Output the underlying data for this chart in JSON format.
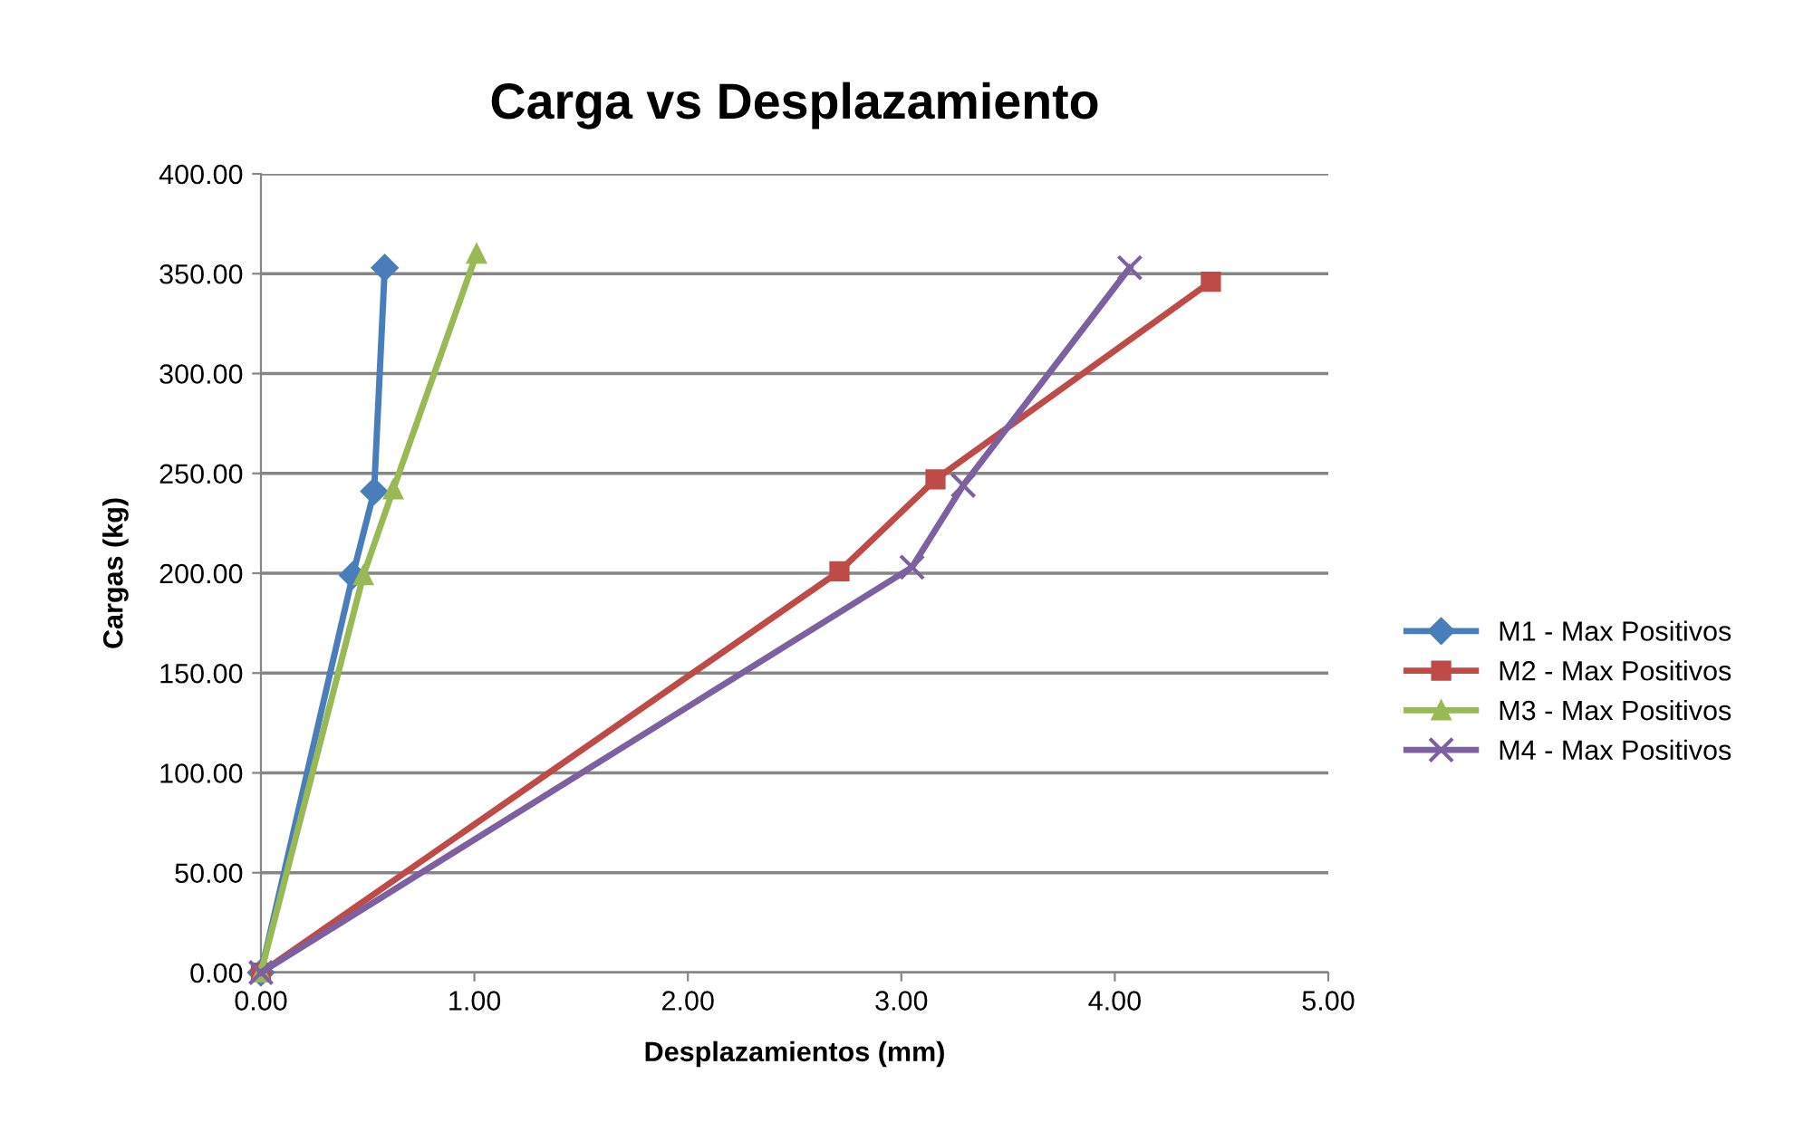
{
  "chart_data": {
    "type": "line",
    "title": "Carga vs Desplazamiento",
    "xlabel": "Desplazamientos (mm)",
    "ylabel": "Cargas (kg)",
    "series": [
      {
        "name": "M1 - Max Positivos",
        "color": "#4a7ebb",
        "marker": "diamond",
        "x": [
          0,
          0.43,
          0.53,
          0.58
        ],
        "values": [
          0,
          199,
          241,
          353
        ]
      },
      {
        "name": "M2 - Max Positivos",
        "color": "#be4b48",
        "marker": "square",
        "x": [
          0,
          2.71,
          3.16,
          4.45
        ],
        "values": [
          0,
          201,
          247,
          346
        ]
      },
      {
        "name": "M3 - Max Positivos",
        "color": "#98b954",
        "marker": "triangle",
        "x": [
          0,
          0.48,
          0.62,
          1.01
        ],
        "values": [
          0,
          199,
          242,
          360
        ]
      },
      {
        "name": "M4 - Max Positivos",
        "color": "#7d60a0",
        "marker": "cross",
        "x": [
          0,
          3.05,
          3.29,
          4.07
        ],
        "values": [
          0,
          203,
          244,
          353
        ]
      }
    ],
    "xlim": [
      0,
      5
    ],
    "ylim": [
      0,
      400
    ],
    "xticks": [
      {
        "value": 0,
        "label": "0.00"
      },
      {
        "value": 1,
        "label": "1.00"
      },
      {
        "value": 2,
        "label": "2.00"
      },
      {
        "value": 3,
        "label": "3.00"
      },
      {
        "value": 4,
        "label": "4.00"
      },
      {
        "value": 5,
        "label": "5.00"
      }
    ],
    "yticks": [
      {
        "value": 0,
        "label": "0.00"
      },
      {
        "value": 50,
        "label": "50.00"
      },
      {
        "value": 100,
        "label": "100.00"
      },
      {
        "value": 150,
        "label": "150.00"
      },
      {
        "value": 200,
        "label": "200.00"
      },
      {
        "value": 250,
        "label": "250.00"
      },
      {
        "value": 300,
        "label": "300.00"
      },
      {
        "value": 350,
        "label": "350.00"
      },
      {
        "value": 400,
        "label": "400.00"
      }
    ],
    "grid": "y",
    "legend": "right",
    "line_style": "solid"
  }
}
